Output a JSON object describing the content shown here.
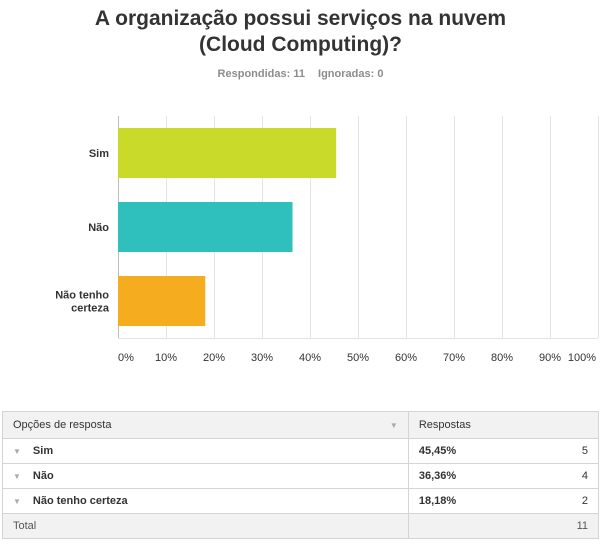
{
  "question": {
    "title_line1": "A organização possui serviços na nuvem",
    "title_line2": "(Cloud Computing)?",
    "answered_label": "Respondidas: 11",
    "skipped_label": "Ignoradas: 0"
  },
  "chart_data": {
    "type": "bar",
    "orientation": "horizontal",
    "categories": [
      "Sim",
      "Não",
      "Não tenho\ncerteza"
    ],
    "values": [
      45.45,
      36.36,
      18.18
    ],
    "colors": [
      "#c9da2a",
      "#2fbfbd",
      "#f5ad1f"
    ],
    "xlim": [
      0,
      100
    ],
    "xticks": [
      "0%",
      "10%",
      "20%",
      "30%",
      "40%",
      "50%",
      "60%",
      "70%",
      "80%",
      "90%",
      "100%"
    ],
    "grid": true
  },
  "table": {
    "headers": [
      "Opções de resposta",
      "Respostas"
    ],
    "rows": [
      {
        "option": "Sim",
        "percent": "45,45%",
        "count": "5"
      },
      {
        "option": "Não",
        "percent": "36,36%",
        "count": "4"
      },
      {
        "option": "Não tenho certeza",
        "percent": "18,18%",
        "count": "2"
      }
    ],
    "total_label": "Total",
    "total_count": "11"
  }
}
